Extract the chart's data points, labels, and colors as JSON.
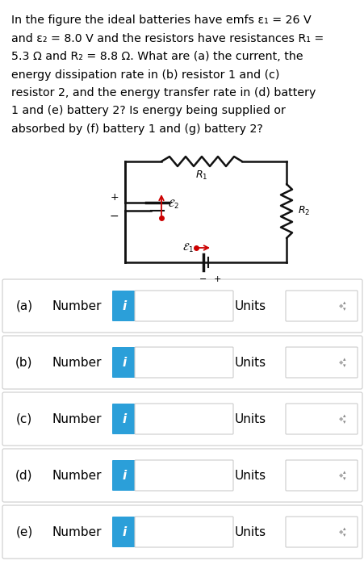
{
  "rows": [
    {
      "label": "(a)",
      "text": "Number",
      "units": "Units"
    },
    {
      "label": "(b)",
      "text": "Number",
      "units": "Units"
    },
    {
      "label": "(c)",
      "text": "Number",
      "units": "Units"
    },
    {
      "label": "(d)",
      "text": "Number",
      "units": "Units"
    },
    {
      "label": "(e)",
      "text": "Number",
      "units": "Units"
    }
  ],
  "bg_color": "#ffffff",
  "row_bg": "#ffffff",
  "row_border": "#cccccc",
  "outer_bg": "#f0f0f0",
  "blue_color": "#2b9fd9",
  "text_color": "#000000",
  "label_fontsize": 11,
  "title_fontsize": 10.2,
  "circuit_line_color": "#111111",
  "red_color": "#cc0000"
}
